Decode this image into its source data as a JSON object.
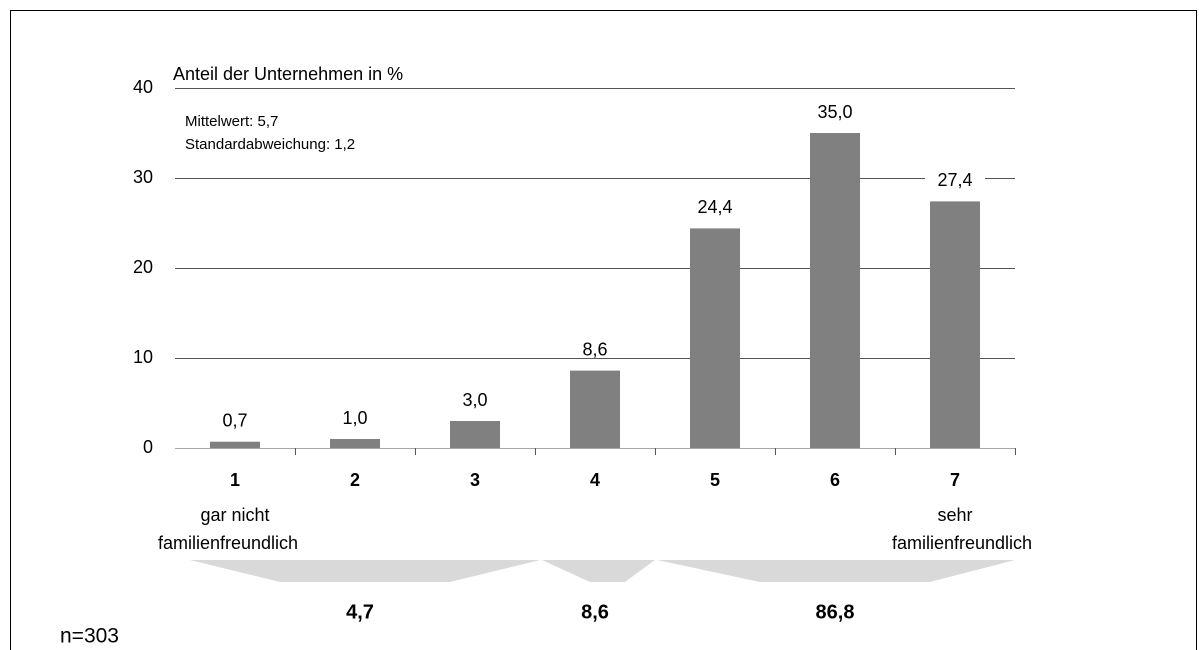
{
  "chart_data": {
    "type": "bar",
    "y_axis_title": "Anteil der Unternehmen in %",
    "annotations": [
      "Mittelwert: 5,7",
      "Standardabweichung: 1,2"
    ],
    "categories": [
      "1",
      "2",
      "3",
      "4",
      "5",
      "6",
      "7"
    ],
    "category_sublabels": {
      "first": [
        "gar nicht",
        "familienfreundlich"
      ],
      "last": [
        "sehr",
        "familienfreundlich"
      ]
    },
    "values": [
      0.7,
      1.0,
      3.0,
      8.6,
      24.4,
      35.0,
      27.4
    ],
    "value_labels": [
      "0,7",
      "1,0",
      "3,0",
      "8,6",
      "24,4",
      "35,0",
      "27,4"
    ],
    "color": "#808080",
    "ylim": [
      0,
      40
    ],
    "yticks": [
      0,
      10,
      20,
      30,
      40
    ],
    "grid": true,
    "groups": {
      "values": [
        4.7,
        8.6,
        86.8
      ],
      "value_labels": [
        "4,7",
        "8,6",
        "86,8"
      ]
    },
    "footnote": "n=303"
  }
}
